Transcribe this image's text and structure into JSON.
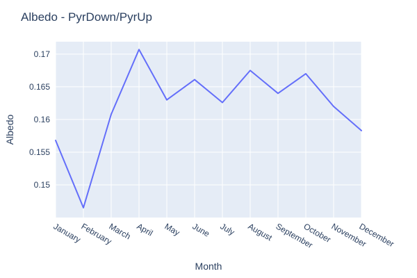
{
  "chart_data": {
    "type": "line",
    "title": "Albedo - PyrDown/PyrUp",
    "xlabel": "Month",
    "ylabel": "Albedo",
    "categories": [
      "January",
      "February",
      "March",
      "April",
      "May",
      "June",
      "July",
      "August",
      "September",
      "October",
      "November",
      "December"
    ],
    "series": [
      {
        "values": [
          0.1568,
          0.1465,
          0.1608,
          0.1707,
          0.163,
          0.1661,
          0.1626,
          0.1675,
          0.164,
          0.167,
          0.162,
          0.1583
        ]
      }
    ],
    "ylim": [
      0.145,
      0.1719
    ],
    "yticks": [
      0.15,
      0.155,
      0.16,
      0.165,
      0.17
    ],
    "ytick_labels": [
      "0.15",
      "0.155",
      "0.16",
      "0.165",
      "0.17"
    ],
    "grid": true,
    "legend": "none"
  },
  "colors": {
    "line": "#636efa",
    "plot_background": "#e5ecf6",
    "text": "#2a3f5f"
  }
}
